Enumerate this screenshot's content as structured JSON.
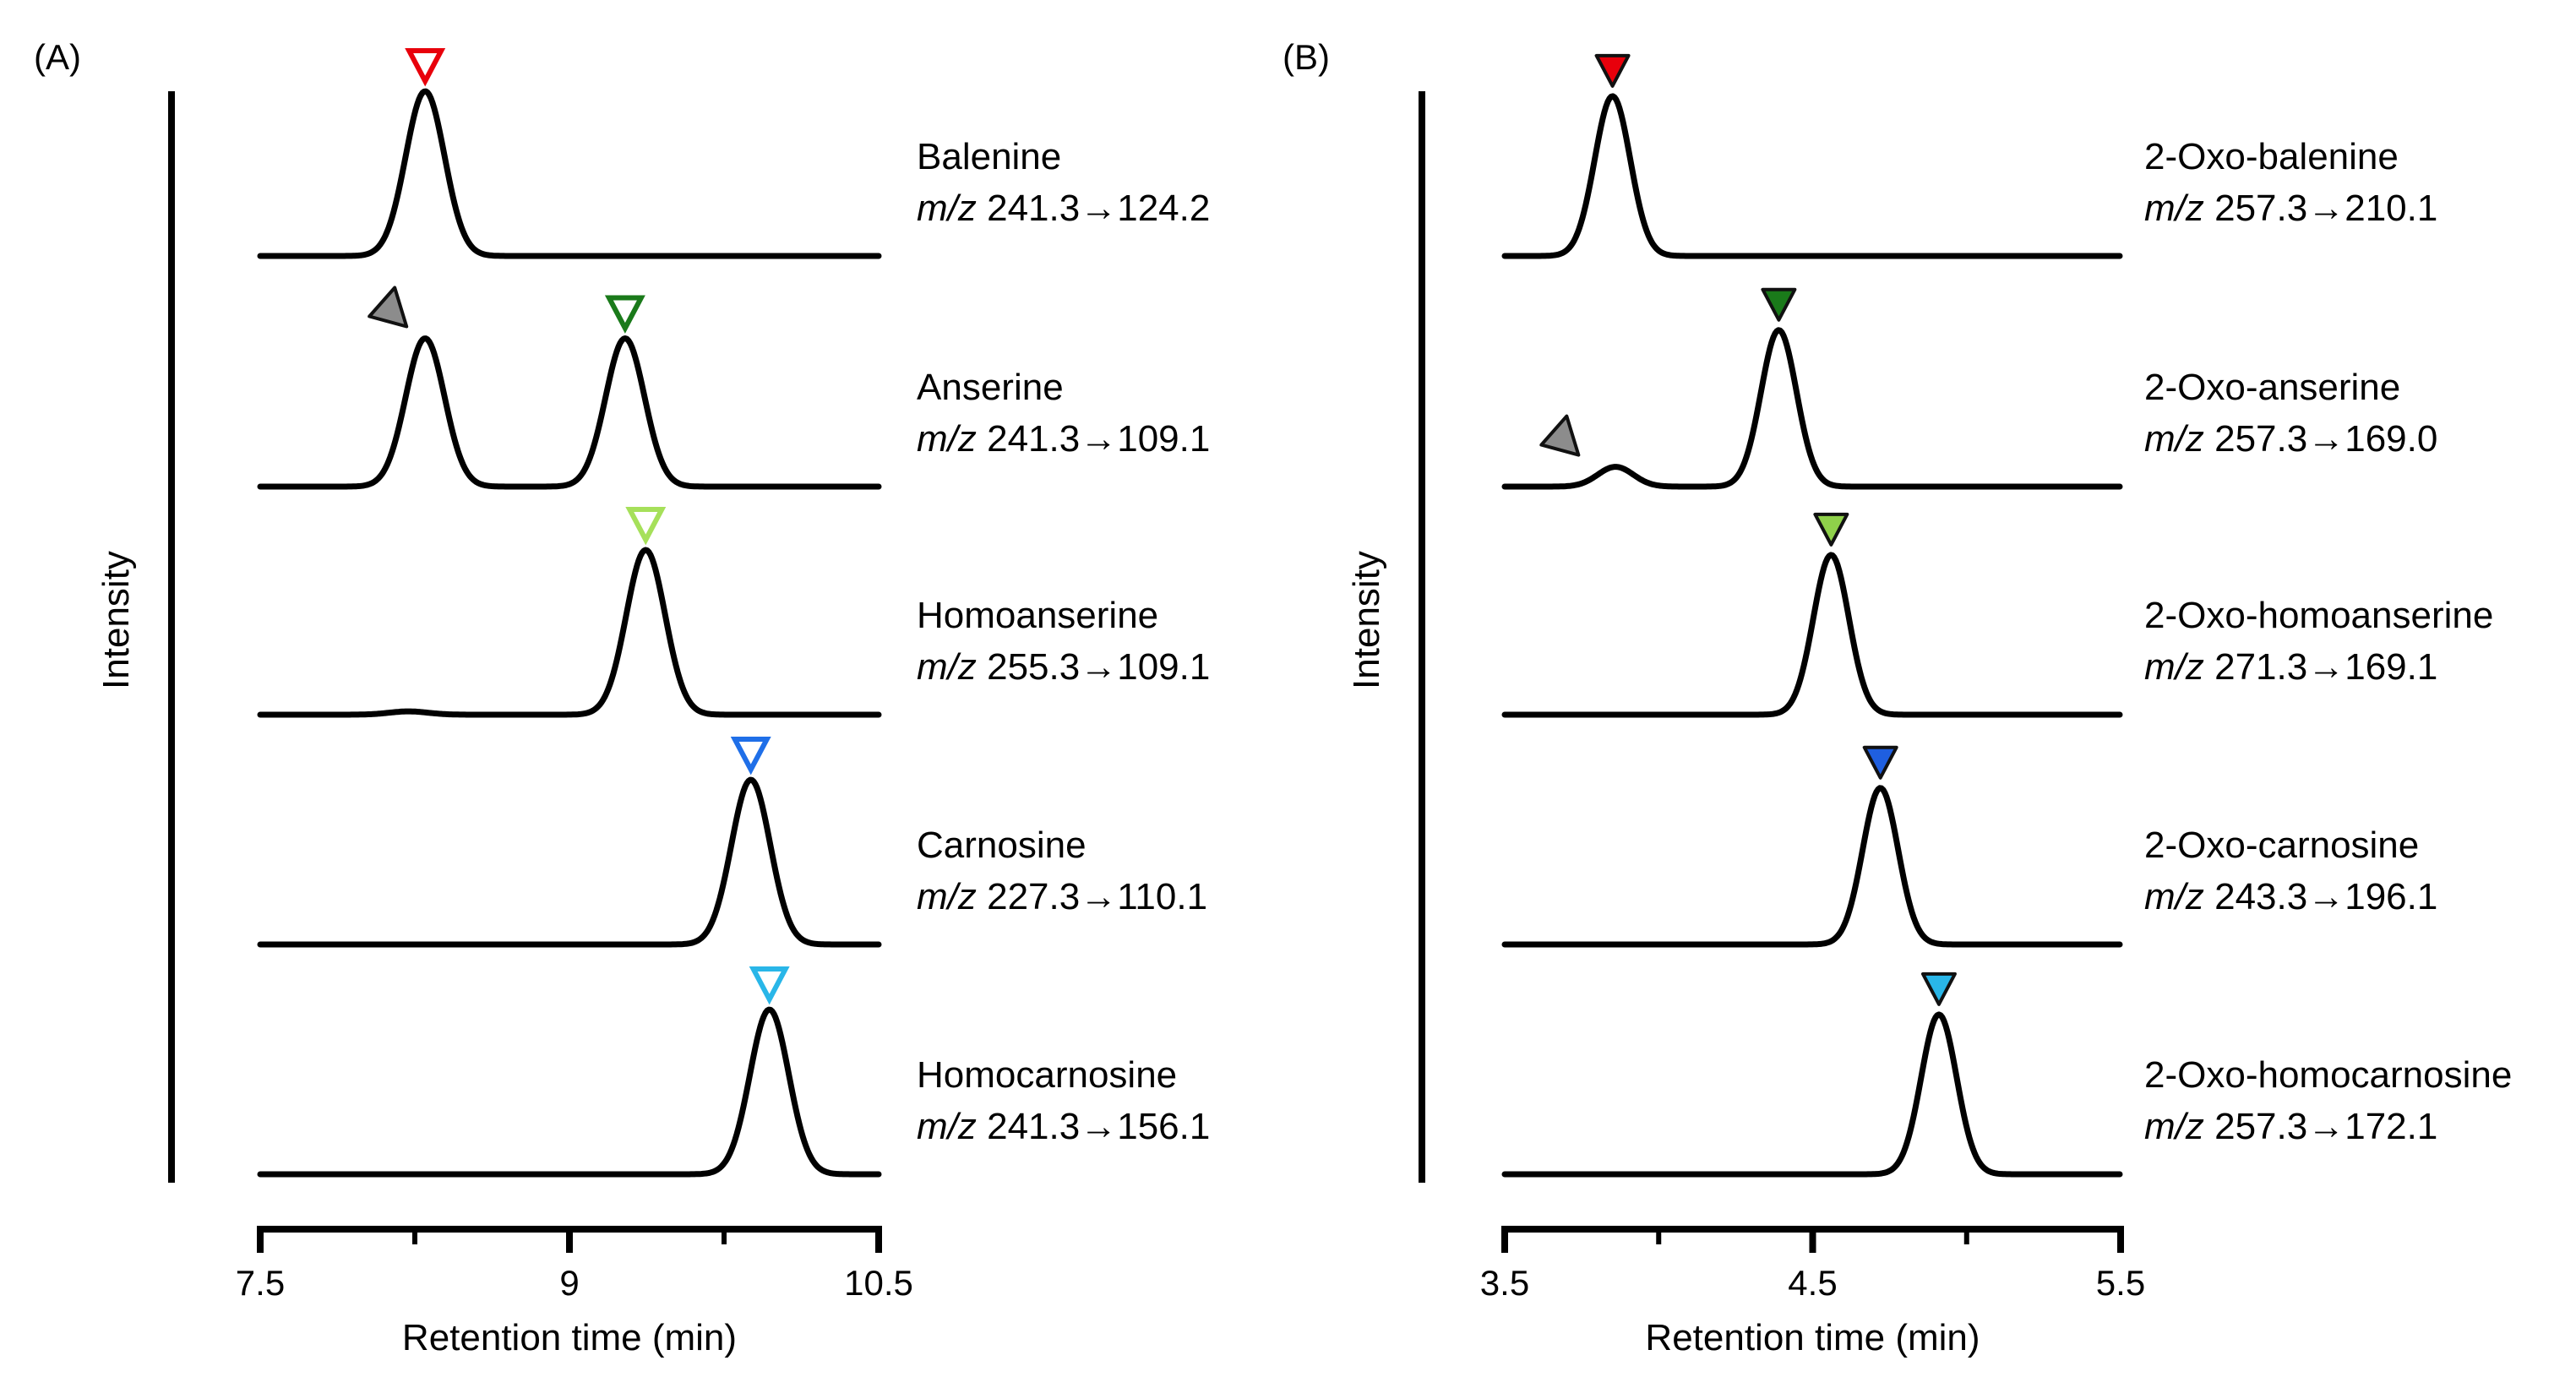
{
  "chart_data": [
    {
      "type": "line",
      "panel": "(A)",
      "ylabel": "Intensity",
      "xlabel": "Retention time (min)",
      "xlim": [
        7.5,
        10.5
      ],
      "major_ticks": [
        7.5,
        9,
        10.5
      ],
      "tick_labels": [
        "7.5",
        "9",
        "10.5"
      ],
      "minor_ticks": [
        8.25,
        9.75
      ],
      "marker_style": "open",
      "series": [
        {
          "name": "Balenine",
          "transition_prefix": "m/z",
          "transition": " 241.3→124.2",
          "peaks": [
            {
              "rt": 8.3,
              "height": 1.0
            }
          ],
          "markers": [
            {
              "rt": 8.3,
              "color": "#e8000b",
              "direction": "down"
            }
          ]
        },
        {
          "name": "Anserine",
          "transition_prefix": "m/z",
          "transition": " 241.3→109.1",
          "peaks": [
            {
              "rt": 8.3,
              "height": 0.9
            },
            {
              "rt": 9.27,
              "height": 0.9
            }
          ],
          "markers": [
            {
              "rt": 8.3,
              "color": "#8c8c8c",
              "direction": "diagonal"
            },
            {
              "rt": 9.27,
              "color": "#1a7a1a",
              "direction": "down"
            }
          ]
        },
        {
          "name": "Homoanserine",
          "transition_prefix": "m/z",
          "transition": " 255.3→109.1",
          "peaks": [
            {
              "rt": 9.37,
              "height": 1.0
            },
            {
              "rt": 8.22,
              "height": 0.02
            }
          ],
          "markers": [
            {
              "rt": 9.37,
              "color": "#a6e05a",
              "direction": "down"
            }
          ]
        },
        {
          "name": "Carnosine",
          "transition_prefix": "m/z",
          "transition": " 227.3→110.1",
          "peaks": [
            {
              "rt": 9.88,
              "height": 1.0
            }
          ],
          "markers": [
            {
              "rt": 9.88,
              "color": "#1f6fe8",
              "direction": "down"
            }
          ]
        },
        {
          "name": "Homocarnosine",
          "transition_prefix": "m/z",
          "transition": " 241.3→156.1",
          "peaks": [
            {
              "rt": 9.97,
              "height": 1.0
            }
          ],
          "markers": [
            {
              "rt": 9.97,
              "color": "#29b6e8",
              "direction": "down"
            }
          ]
        }
      ]
    },
    {
      "type": "line",
      "panel": "(B)",
      "ylabel": "Intensity",
      "xlabel": "Retention time (min)",
      "xlim": [
        3.5,
        5.5
      ],
      "major_ticks": [
        3.5,
        4.5,
        5.5
      ],
      "tick_labels": [
        "3.5",
        "4.5",
        "5.5"
      ],
      "minor_ticks": [
        4.0,
        5.0
      ],
      "marker_style": "filled",
      "series": [
        {
          "name": "2-Oxo-balenine",
          "transition_prefix": "m/z",
          "transition": " 257.3→210.1",
          "peaks": [
            {
              "rt": 3.85,
              "height": 0.97
            }
          ],
          "markers": [
            {
              "rt": 3.85,
              "color": "#e8000b",
              "direction": "down"
            }
          ]
        },
        {
          "name": "2-Oxo-anserine",
          "transition_prefix": "m/z",
          "transition": " 257.3→169.0",
          "peaks": [
            {
              "rt": 4.39,
              "height": 0.95
            },
            {
              "rt": 3.86,
              "height": 0.12
            }
          ],
          "markers": [
            {
              "rt": 4.39,
              "color": "#1a7a1a",
              "direction": "down"
            },
            {
              "rt": 3.8,
              "color": "#8c8c8c",
              "direction": "diagonal"
            }
          ]
        },
        {
          "name": "2-Oxo-homoanserine",
          "transition_prefix": "m/z",
          "transition": " 271.3→169.1",
          "peaks": [
            {
              "rt": 4.56,
              "height": 0.97
            }
          ],
          "markers": [
            {
              "rt": 4.56,
              "color": "#8fd14a",
              "direction": "down"
            }
          ]
        },
        {
          "name": "2-Oxo-carnosine",
          "transition_prefix": "m/z",
          "transition": " 243.3→196.1",
          "peaks": [
            {
              "rt": 4.72,
              "height": 0.95
            }
          ],
          "markers": [
            {
              "rt": 4.72,
              "color": "#1f5fe0",
              "direction": "down"
            }
          ]
        },
        {
          "name": "2-Oxo-homocarnosine",
          "transition_prefix": "m/z",
          "transition": " 257.3→172.1",
          "peaks": [
            {
              "rt": 4.91,
              "height": 0.97
            }
          ],
          "markers": [
            {
              "rt": 4.91,
              "color": "#29b6e8",
              "direction": "down"
            }
          ]
        }
      ]
    }
  ]
}
